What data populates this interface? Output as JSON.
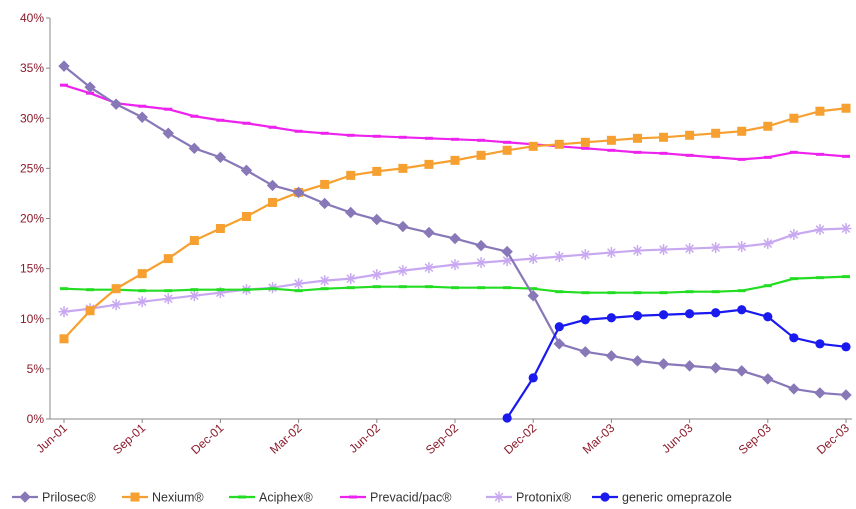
{
  "chart_data": {
    "type": "line",
    "title": "",
    "xlabel": "",
    "ylabel": "",
    "ylim": [
      0,
      40
    ],
    "y_ticks": [
      "0%",
      "5%",
      "10%",
      "15%",
      "20%",
      "25%",
      "30%",
      "35%",
      "40%"
    ],
    "x_tick_labels": [
      "Jun-01",
      "Sep-01",
      "Dec-01",
      "Mar-02",
      "Jun-02",
      "Sep-02",
      "Dec-02",
      "Mar-03",
      "Jun-03",
      "Sep-03",
      "Dec-03"
    ],
    "x_months": [
      "Jun-01",
      "Jul-01",
      "Aug-01",
      "Sep-01",
      "Oct-01",
      "Nov-01",
      "Dec-01",
      "Jan-02",
      "Feb-02",
      "Mar-02",
      "Apr-02",
      "May-02",
      "Jun-02",
      "Jul-02",
      "Aug-02",
      "Sep-02",
      "Oct-02",
      "Nov-02",
      "Dec-02",
      "Jan-03",
      "Feb-03",
      "Mar-03",
      "Apr-03",
      "May-03",
      "Jun-03",
      "Jul-03",
      "Aug-03",
      "Sep-03",
      "Oct-03",
      "Nov-03",
      "Dec-03"
    ],
    "grid": false,
    "legend_position": "bottom",
    "series": [
      {
        "name": "Prilosec®",
        "color": "#8878b8",
        "marker": "diamond",
        "values": [
          35.2,
          33.1,
          31.4,
          30.1,
          28.5,
          27.0,
          26.1,
          24.8,
          23.3,
          22.6,
          21.5,
          20.6,
          19.9,
          19.2,
          18.6,
          18.0,
          17.3,
          16.7,
          12.3,
          7.5,
          6.7,
          6.3,
          5.8,
          5.5,
          5.3,
          5.1,
          4.8,
          4.0,
          3.0,
          2.6,
          2.4
        ]
      },
      {
        "name": "Nexium®",
        "color": "#f5a030",
        "marker": "square",
        "values": [
          8.0,
          10.8,
          13.0,
          14.5,
          16.0,
          17.8,
          19.0,
          20.2,
          21.6,
          22.6,
          23.4,
          24.3,
          24.7,
          25.0,
          25.4,
          25.8,
          26.3,
          26.8,
          27.2,
          27.4,
          27.6,
          27.8,
          28.0,
          28.1,
          28.3,
          28.5,
          28.7,
          29.2,
          30.0,
          30.7,
          31.0
        ]
      },
      {
        "name": "Aciphex®",
        "color": "#22dd22",
        "marker": "dash",
        "values": [
          13.0,
          12.9,
          12.9,
          12.8,
          12.8,
          12.9,
          12.9,
          12.9,
          13.0,
          12.8,
          13.0,
          13.1,
          13.2,
          13.2,
          13.2,
          13.1,
          13.1,
          13.1,
          13.0,
          12.7,
          12.6,
          12.6,
          12.6,
          12.6,
          12.7,
          12.7,
          12.8,
          13.3,
          14.0,
          14.1,
          14.2
        ]
      },
      {
        "name": "Prevacid/pac®",
        "color": "#ee22ee",
        "marker": "dash",
        "values": [
          33.3,
          32.5,
          31.5,
          31.2,
          30.9,
          30.2,
          29.8,
          29.5,
          29.1,
          28.7,
          28.5,
          28.3,
          28.2,
          28.1,
          28.0,
          27.9,
          27.8,
          27.6,
          27.4,
          27.2,
          27.0,
          26.8,
          26.6,
          26.5,
          26.3,
          26.1,
          25.9,
          26.1,
          26.6,
          26.4,
          26.2
        ]
      },
      {
        "name": "Protonix®",
        "color": "#c8a8f0",
        "marker": "asterisk",
        "values": [
          10.7,
          11.0,
          11.4,
          11.7,
          12.0,
          12.3,
          12.6,
          12.9,
          13.1,
          13.5,
          13.8,
          14.0,
          14.4,
          14.8,
          15.1,
          15.4,
          15.6,
          15.8,
          16.0,
          16.2,
          16.4,
          16.6,
          16.8,
          16.9,
          17.0,
          17.1,
          17.2,
          17.5,
          18.4,
          18.9,
          19.0
        ]
      },
      {
        "name": "generic omeprazole",
        "color": "#1a1aee",
        "marker": "circle",
        "values": [
          null,
          null,
          null,
          null,
          null,
          null,
          null,
          null,
          null,
          null,
          null,
          null,
          null,
          null,
          null,
          null,
          null,
          0.1,
          4.1,
          9.2,
          9.9,
          10.1,
          10.3,
          10.4,
          10.5,
          10.6,
          10.9,
          10.2,
          8.1,
          7.5,
          7.2
        ]
      }
    ]
  }
}
